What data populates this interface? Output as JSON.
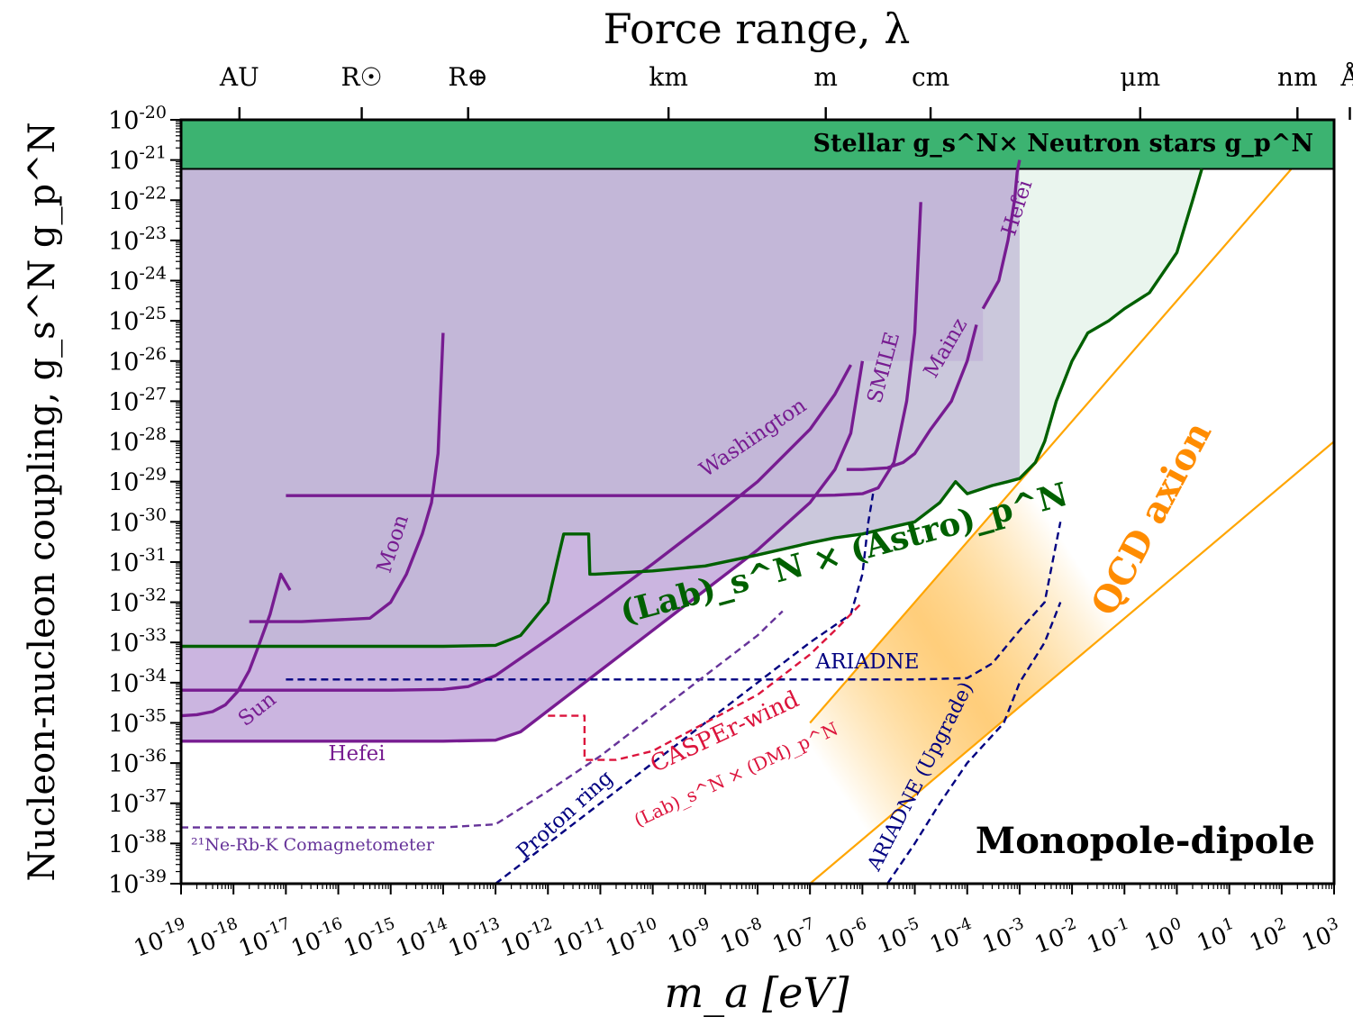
{
  "chart_data": {
    "type": "line",
    "title": "Force range, λ",
    "xlabel": "m_a [eV]",
    "ylabel": "Nucleon-nucleon coupling, g_s^N g_p^N",
    "xscale": "log",
    "yscale": "log",
    "xlim": [
      1e-19,
      1000.0
    ],
    "ylim": [
      1e-39,
      1e-20
    ],
    "grid": false,
    "x_tick_labels": [
      "10^-19",
      "10^-18",
      "10^-17",
      "10^-16",
      "10^-15",
      "10^-14",
      "10^-13",
      "10^-12",
      "10^-11",
      "10^-10",
      "10^-9",
      "10^-8",
      "10^-7",
      "10^-6",
      "10^-5",
      "10^-4",
      "10^-3",
      "10^-2",
      "10^-1",
      "10^0",
      "10^1",
      "10^2",
      "10^3"
    ],
    "y_tick_labels": [
      "10^-20",
      "10^-21",
      "10^-22",
      "10^-23",
      "10^-24",
      "10^-25",
      "10^-26",
      "10^-27",
      "10^-28",
      "10^-29",
      "10^-30",
      "10^-31",
      "10^-32",
      "10^-33",
      "10^-34",
      "10^-35",
      "10^-36",
      "10^-37",
      "10^-38",
      "10^-39"
    ],
    "top_axis_ticks": [
      {
        "label": "AU",
        "m_a": 1.3e-18
      },
      {
        "label": "R☉",
        "m_a": 2.8e-16
      },
      {
        "label": "R⊕",
        "m_a": 3e-14
      },
      {
        "label": "km",
        "m_a": 2e-10
      },
      {
        "label": "m",
        "m_a": 2e-07
      },
      {
        "label": "cm",
        "m_a": 2e-05
      },
      {
        "label": "μm",
        "m_a": 0.2
      },
      {
        "label": "nm",
        "m_a": 200
      },
      {
        "label": "Å",
        "m_a": 2000
      }
    ],
    "colors": {
      "purple": "#771c91",
      "green": "#006000",
      "navy": "#000080",
      "crimson": "#dc143c",
      "orange": "#ffa500",
      "dark_orange": "#ff8c00",
      "stellar": "#3cb371",
      "excluded_fill": "#c0b8d6",
      "lab_fill": "#cbb5e0",
      "astro_fill": "#eaf5ee",
      "comag": "#663399"
    },
    "regions": [
      {
        "name": "Stellar g_s^N × Neutron stars g_p^N",
        "y_range": [
          6e-22,
          1e-20
        ]
      }
    ],
    "series": [
      {
        "name": "Hefei",
        "style": "solid",
        "color": "purple",
        "x": [
          1e-19,
          1e-14,
          1e-13,
          3e-13,
          1e-12,
          1e-11,
          1e-10,
          1e-09,
          1e-08,
          1e-07,
          3e-07,
          6e-07,
          1e-06
        ],
        "y": [
          3.5e-36,
          3.5e-36,
          3.7e-36,
          6e-36,
          2e-35,
          2e-34,
          2e-33,
          2e-32,
          2e-31,
          3e-30,
          2e-29,
          1.6e-28,
          1e-26
        ]
      },
      {
        "name": "Washington",
        "style": "solid",
        "color": "purple",
        "x": [
          1e-19,
          1e-15,
          1e-14,
          3e-14,
          1e-13,
          1e-12,
          1e-11,
          1e-10,
          1e-09,
          1e-08,
          1e-07,
          3e-07,
          6e-07
        ],
        "y": [
          6.5e-35,
          6.5e-35,
          6.8e-35,
          8e-35,
          1.5e-34,
          1.2e-33,
          1e-32,
          9e-32,
          9e-31,
          1e-29,
          2e-28,
          1.5e-27,
          8e-27
        ]
      },
      {
        "name": "Sun",
        "style": "solid",
        "color": "purple",
        "x": [
          1e-19,
          2e-19,
          4e-19,
          7e-19,
          1.2e-18,
          2e-18,
          3e-18,
          5e-18,
          8e-18,
          1.2e-17
        ],
        "y": [
          1.5e-35,
          1.6e-35,
          1.9e-35,
          2.8e-35,
          6e-35,
          2e-34,
          8e-34,
          5e-33,
          5e-32,
          2e-32
        ]
      },
      {
        "name": "Moon",
        "style": "solid",
        "color": "purple",
        "x": [
          2e-18,
          2e-17,
          4e-16,
          1e-15,
          2e-15,
          4e-15,
          6e-15,
          8e-15,
          1e-14
        ],
        "y": [
          3.3e-33,
          3.3e-33,
          4e-33,
          1e-32,
          5e-32,
          5e-31,
          3e-30,
          5e-29,
          5e-26
        ]
      },
      {
        "name": "SMILE",
        "style": "solid",
        "color": "purple",
        "x": [
          1e-17,
          1e-08,
          1e-07,
          3e-07,
          1e-06,
          2e-06,
          4e-06,
          7e-06,
          1e-05,
          1.3e-05
        ],
        "y": [
          4.5e-30,
          4.5e-30,
          4.5e-30,
          4.6e-30,
          5e-30,
          7e-30,
          3e-29,
          1e-27,
          5e-26,
          9e-23
        ]
      },
      {
        "name": "Mainz",
        "style": "solid",
        "color": "purple",
        "x": [
          5e-07,
          1e-06,
          3e-06,
          6e-06,
          1e-05,
          2e-05,
          5e-05,
          0.0001,
          0.00015
        ],
        "y": [
          2e-29,
          2e-29,
          2.2e-29,
          3e-29,
          5e-29,
          2e-28,
          1e-27,
          1e-26,
          8e-26
        ]
      },
      {
        "name": "Hefei",
        "style": "solid",
        "color": "purple",
        "x": [
          0.0002,
          0.0004,
          0.0006,
          0.0008,
          0.0009,
          0.001
        ],
        "y": [
          2e-25,
          1e-24,
          1e-23,
          1e-22,
          5e-22,
          1e-21
        ]
      },
      {
        "name": "(Lab)_s^N × (Astro)_p^N",
        "style": "solid",
        "color": "green",
        "x": [
          1e-19,
          1e-14,
          1e-13,
          3e-13,
          1e-12,
          1.5e-12,
          2e-12,
          5e-12,
          6e-12,
          6.3e-12,
          8e-12,
          1e-10,
          1e-09,
          1e-08,
          1e-07,
          3e-07,
          1e-06,
          3e-06,
          1e-05,
          3e-05,
          6e-05,
          0.0001,
          0.0003,
          0.0006,
          0.001,
          0.002,
          0.003,
          0.005,
          0.01,
          0.02,
          0.05,
          0.1,
          0.3,
          1,
          2,
          3
        ],
        "y": [
          8e-34,
          8e-34,
          8.5e-34,
          1.5e-33,
          1e-32,
          1e-31,
          5e-31,
          5e-31,
          5e-31,
          5e-32,
          5e-32,
          6e-32,
          8e-32,
          1.5e-31,
          3e-31,
          4e-31,
          5e-31,
          7e-31,
          1e-30,
          3e-30,
          1e-29,
          5e-30,
          8e-30,
          1e-29,
          1.2e-29,
          3e-29,
          1e-28,
          1e-27,
          1e-26,
          5e-26,
          1e-25,
          2e-25,
          5e-25,
          5e-24,
          1e-22,
          6e-22
        ]
      },
      {
        "name": "ARIADNE",
        "style": "dashed",
        "color": "navy",
        "x": [
          1e-17,
          1e-13,
          1e-10,
          1e-07,
          1e-05,
          0.0001,
          0.0003,
          0.001,
          0.003,
          0.006
        ],
        "y": [
          1.2e-34,
          1.2e-34,
          1.2e-34,
          1.2e-34,
          1.2e-34,
          1.3e-34,
          3e-34,
          2e-33,
          1e-32,
          1e-30
        ]
      },
      {
        "name": "ARIADNE (Upgrade)",
        "style": "dashed",
        "color": "navy",
        "x": [
          3e-06,
          1e-05,
          3e-05,
          0.0001,
          0.0005,
          0.001,
          0.003,
          0.006
        ],
        "y": [
          1e-39,
          1e-38,
          1e-37,
          1e-36,
          1e-35,
          1e-34,
          1e-33,
          1e-32
        ]
      },
      {
        "name": "Proton ring",
        "style": "dashed",
        "color": "navy",
        "x": [
          1e-13,
          1e-12,
          1e-11,
          1e-10,
          1e-09,
          1e-08,
          1e-07,
          6e-07,
          1e-06,
          1.3e-06,
          1.6e-06
        ],
        "y": [
          1e-39,
          1e-38,
          1e-37,
          1e-36,
          1e-35,
          1e-34,
          1e-33,
          5e-33,
          5e-32,
          1e-30,
          5e-30
        ]
      },
      {
        "name": "CASPEr-wind (Lab)_s^N × (DM)_p^N",
        "style": "dashed",
        "color": "crimson",
        "x": [
          1e-12,
          5e-12,
          5e-12,
          2e-11,
          1e-10,
          1e-09,
          1e-08,
          1e-07,
          3e-07,
          1e-06
        ],
        "y": [
          1.5e-35,
          1.5e-35,
          1.2e-36,
          1.2e-36,
          2e-36,
          1e-35,
          5e-35,
          5e-34,
          2e-33,
          1e-32
        ]
      },
      {
        "name": "²¹Ne-Rb-K Comagnetometer",
        "style": "dashed",
        "color": "comag",
        "x": [
          1e-19,
          1e-14,
          1e-13,
          1e-12,
          1e-11,
          1e-10,
          1e-09,
          1e-08,
          3e-08
        ],
        "y": [
          2.5e-38,
          2.5e-38,
          3e-38,
          2e-37,
          1.5e-36,
          1.5e-35,
          1.5e-34,
          1.5e-33,
          6e-33
        ]
      }
    ],
    "qcd_band": {
      "name": "QCD axion",
      "lower_edge": [
        [
          1e-07,
          1e-39
        ],
        [
          1000.0,
          1e-28
        ]
      ],
      "upper_edge": [
        [
          1e-07,
          1e-35
        ],
        [
          1000.0,
          1e-20
        ]
      ]
    },
    "annotations": [
      "Stellar g_s^N × Neutron stars g_p^N",
      "Monopole-dipole",
      "QCD axion",
      "(Lab)_s^N × (Astro)_p^N",
      "Washington",
      "SMILE",
      "Mainz",
      "Hefei",
      "Moon",
      "Sun",
      "ARIADNE",
      "ARIADNE (Upgrade)",
      "Proton ring",
      "CASPEr-wind",
      "(Lab)_s^N × (DM)_p^N",
      "²¹Ne-Rb-K Comagnetometer"
    ]
  },
  "labels": {
    "top_title": "Force range, λ",
    "x_axis": "m_a [eV]",
    "y_axis": "Nucleon-nucleon coupling, g_s^N g_p^N",
    "stellar": "Stellar g_s^N× Neutron stars g_p^N",
    "monopole": "Monopole-dipole",
    "qcd": "QCD axion",
    "lab_astro": "(Lab)_s^N × (Astro)_p^N",
    "washington": "Washington",
    "smile": "SMILE",
    "mainz": "Mainz",
    "hefei_top": "Hefei",
    "hefei_bottom": "Hefei",
    "moon": "Moon",
    "sun": "Sun",
    "ariadne": "ARIADNE",
    "ariadne_upgrade": "ARIADNE (Upgrade)",
    "proton_ring": "Proton ring",
    "casper": "CASPEr-wind",
    "casper_sub": "(Lab)_s^N × (DM)_p^N",
    "comag": "²¹Ne-Rb-K Comagnetometer"
  }
}
